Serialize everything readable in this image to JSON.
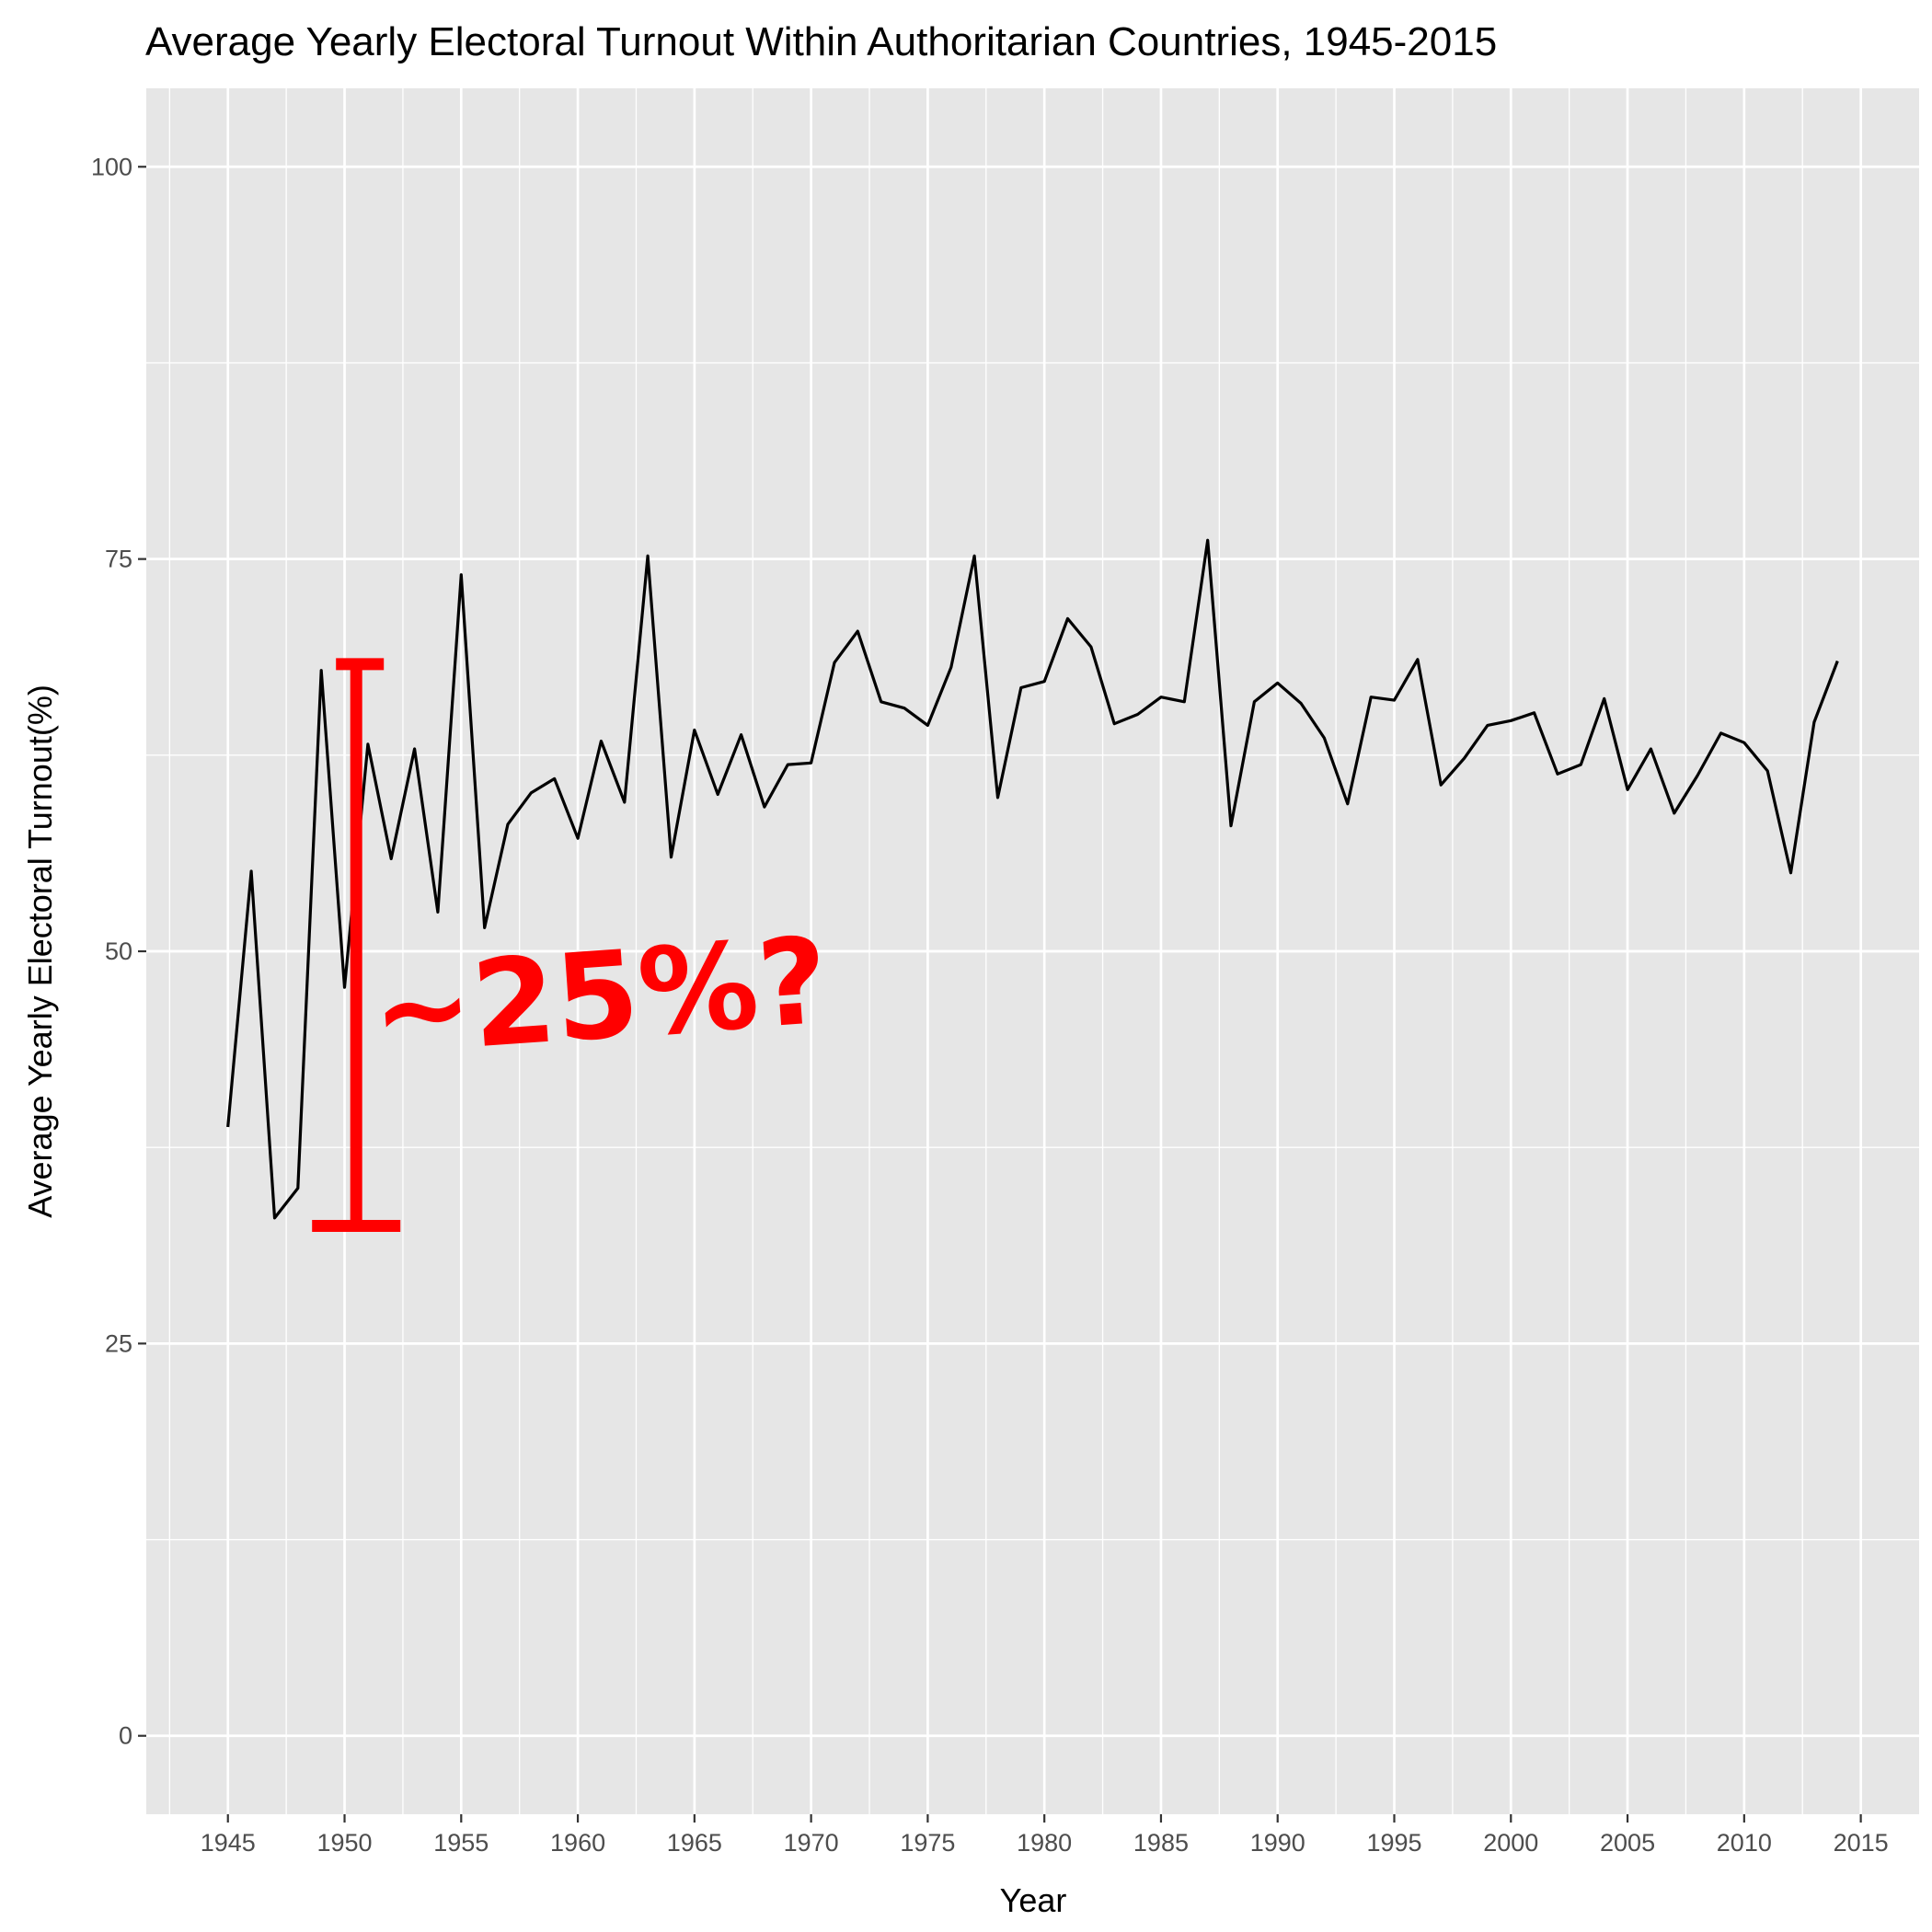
{
  "chart_data": {
    "type": "line",
    "title": "Average Yearly Electoral Turnout Within Authoritarian Countries, 1945-2015",
    "xlabel": "Year",
    "ylabel": "Average Yearly Electoral Turnout(%)",
    "xlim": [
      1941.5,
      2017.5
    ],
    "ylim": [
      -5,
      105
    ],
    "x_ticks": [
      1945,
      1950,
      1955,
      1960,
      1965,
      1970,
      1975,
      1980,
      1985,
      1990,
      1995,
      2000,
      2005,
      2010,
      2015
    ],
    "y_ticks": [
      0,
      25,
      50,
      75,
      100
    ],
    "grid": true,
    "legend": "none",
    "line_color": "#000000",
    "panel_color": "#e6e6e6",
    "series": [
      {
        "x": [
          1945,
          1946,
          1947,
          1948,
          1949,
          1950,
          1951,
          1952,
          1953,
          1954,
          1955,
          1956,
          1957,
          1958,
          1959,
          1960,
          1961,
          1962,
          1963,
          1964,
          1965,
          1966,
          1967,
          1968,
          1969,
          1970,
          1971,
          1972,
          1973,
          1974,
          1975,
          1976,
          1977,
          1978,
          1979,
          1980,
          1981,
          1982,
          1983,
          1984,
          1985,
          1986,
          1987,
          1988,
          1989,
          1990,
          1991,
          1992,
          1993,
          1994,
          1995,
          1996,
          1997,
          1998,
          1999,
          2000,
          2001,
          2002,
          2003,
          2004,
          2005,
          2006,
          2007,
          2008,
          2009,
          2010,
          2011,
          2012,
          2013,
          2014
        ],
        "values": [
          38.8,
          55.1,
          33.0,
          34.9,
          67.9,
          47.7,
          63.2,
          55.9,
          62.9,
          52.5,
          74.0,
          51.5,
          58.1,
          60.1,
          61.0,
          57.2,
          63.4,
          59.5,
          75.2,
          56.0,
          64.1,
          60.0,
          63.8,
          59.2,
          61.9,
          62.0,
          68.4,
          70.4,
          65.9,
          65.5,
          64.4,
          68.1,
          75.2,
          59.8,
          66.8,
          67.2,
          71.2,
          69.4,
          64.5,
          65.1,
          66.2,
          65.9,
          76.2,
          58.0,
          65.9,
          67.1,
          65.8,
          63.6,
          59.4,
          66.2,
          66.0,
          68.6,
          60.6,
          62.3,
          64.4,
          64.7,
          65.2,
          61.3,
          61.9,
          66.1,
          60.3,
          62.9,
          58.8,
          61.2,
          63.9,
          63.3,
          61.5,
          55.0,
          64.6,
          68.5
        ]
      }
    ],
    "annotation": {
      "text": "~25%?",
      "color": "#ff0000",
      "bracket_year": 1950.5,
      "bracket_from": 32.5,
      "bracket_to": 68.3
    }
  }
}
